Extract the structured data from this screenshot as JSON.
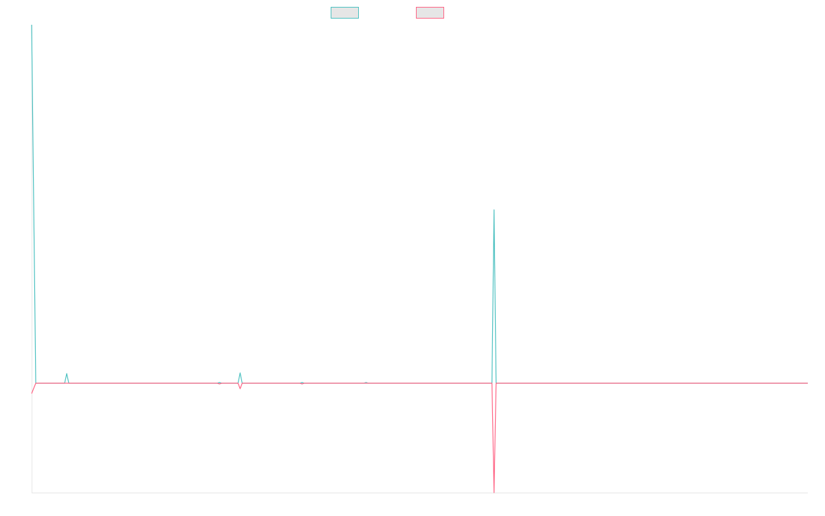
{
  "chart_data": {
    "type": "line",
    "x": [
      0,
      2,
      16,
      17,
      18,
      90,
      91,
      92,
      100,
      101,
      102,
      130,
      131,
      132,
      161,
      162,
      163,
      223,
      224,
      225,
      376
    ],
    "series": [
      {
        "color": "#4bc0c0",
        "values": [
          521,
          0,
          0,
          14,
          0,
          0,
          1,
          0,
          0,
          15,
          0,
          0,
          1,
          0,
          0,
          1,
          0,
          0,
          252,
          0,
          0
        ]
      },
      {
        "color": "#ff6384",
        "values": [
          -15,
          0,
          0,
          0,
          0,
          0,
          -1,
          0,
          0,
          -8,
          0,
          0,
          -1,
          0,
          0,
          0,
          0,
          0,
          -159,
          0,
          0
        ]
      }
    ],
    "xlim": [
      0,
      376
    ],
    "ylim": [
      -159,
      521
    ]
  }
}
